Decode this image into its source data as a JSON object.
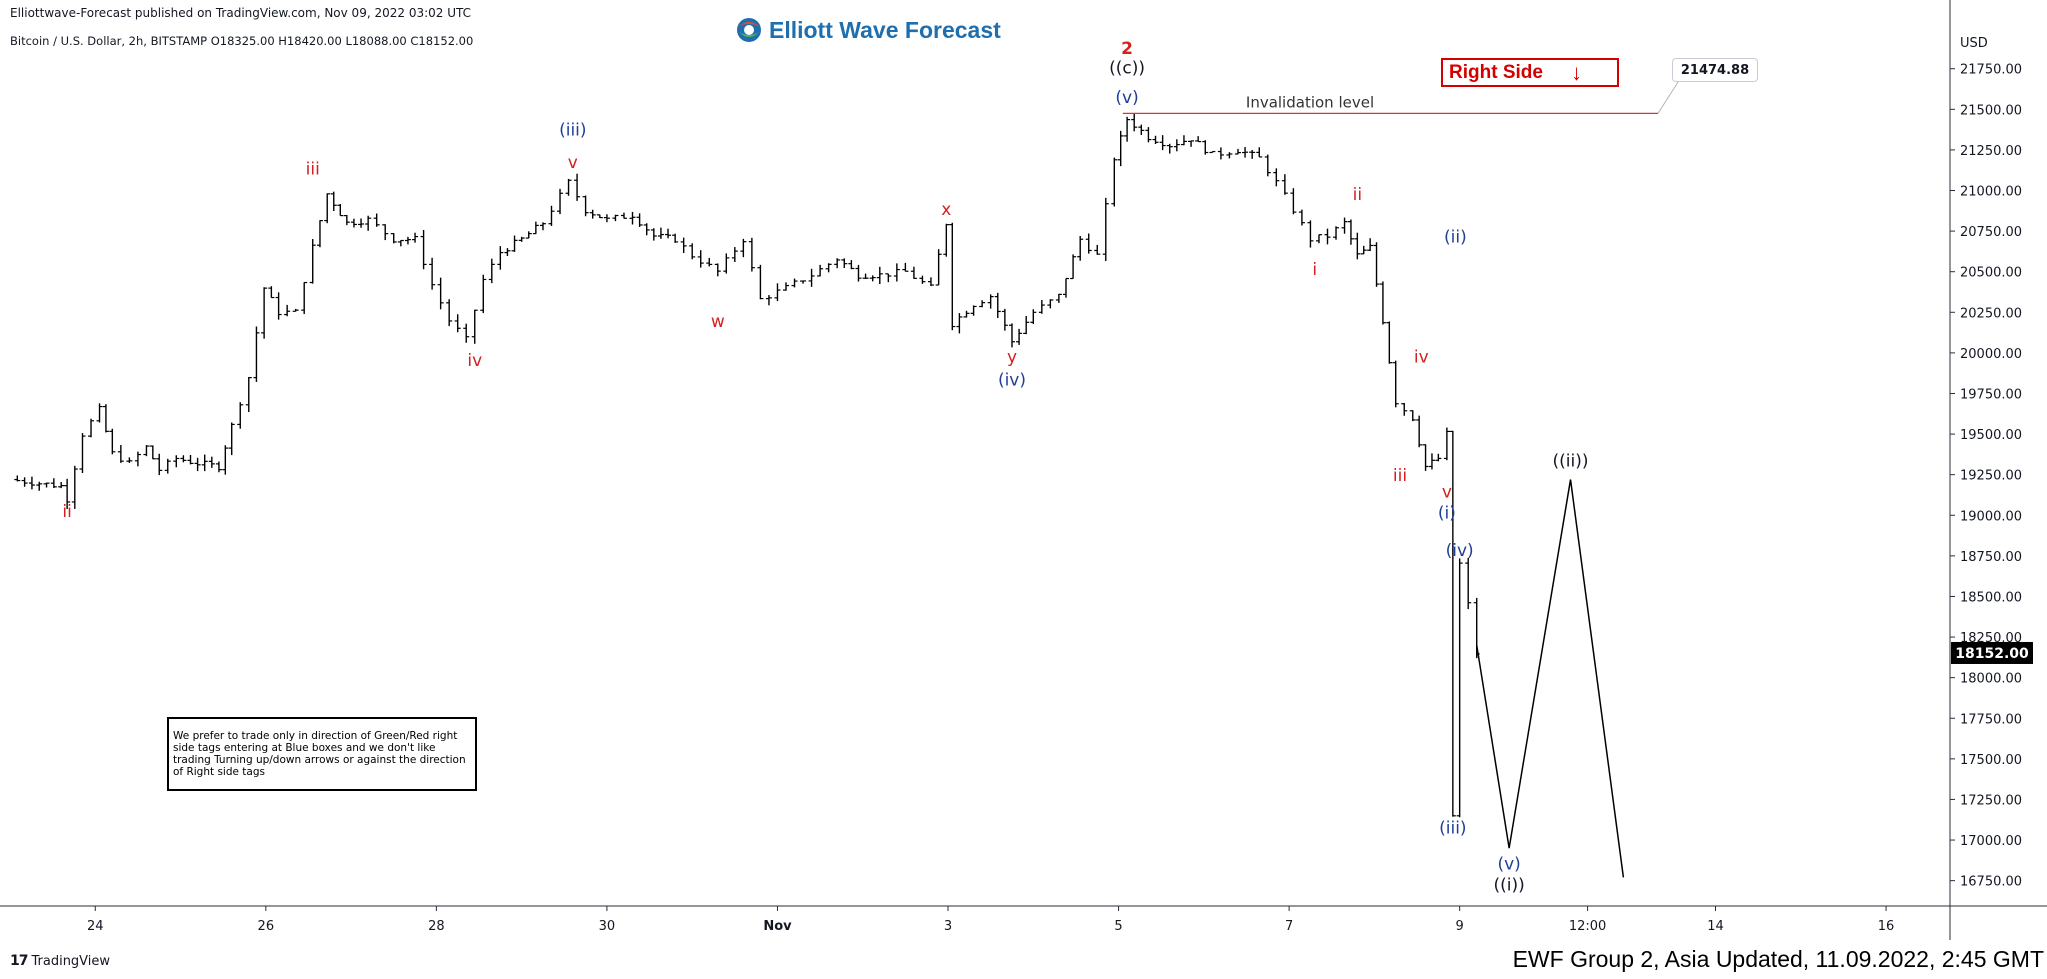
{
  "header": {
    "publisher": "Elliottwave-Forecast published on TradingView.com, Nov 09, 2022 03:02 UTC",
    "symbol_line": "Bitcoin / U.S. Dollar, 2h, BITSTAMP  O18325.00  H18420.00  L18088.00  C18152.00"
  },
  "brand": {
    "name": "Elliott Wave Forecast",
    "logo_icon": "ewf-globe-logo"
  },
  "right_side_tag": {
    "label": "Right Side",
    "arrow": "↓",
    "color": "#d40000"
  },
  "invalidation": {
    "label": "Invalidation level",
    "price_label": "21474.88",
    "price": 21474.88
  },
  "note": "We prefer to trade only in direction of Green/Red right side tags entering at Blue boxes and we don't like trading Turning up/down arrows or against the direction of Right side tags",
  "footer": {
    "tv_logo": "TradingView",
    "tv_mark": "17",
    "update": "EWF Group 2, Asia Updated, 11.09.2022, 2:45 GMT"
  },
  "chart_data": {
    "type": "line",
    "ylim": [
      16600,
      22050
    ],
    "y_axis_unit": "USD",
    "y_ticks": [
      "21750.00",
      "21500.00",
      "21250.00",
      "21000.00",
      "20750.00",
      "20500.00",
      "20250.00",
      "20000.00",
      "19750.00",
      "19500.00",
      "19250.00",
      "19000.00",
      "18750.00",
      "18500.00",
      "18250.00",
      "18000.00",
      "17750.00",
      "17500.00",
      "17250.00",
      "17000.00",
      "16750.00"
    ],
    "y_tick_values": [
      21750,
      21500,
      21250,
      21000,
      20750,
      20500,
      20250,
      20000,
      19750,
      19500,
      19250,
      19000,
      18750,
      18500,
      18250,
      18000,
      17750,
      17500,
      17250,
      17000,
      16750
    ],
    "x_ticks": [
      {
        "label": "24",
        "t": 1.0
      },
      {
        "label": "26",
        "t": 3.0
      },
      {
        "label": "28",
        "t": 5.0
      },
      {
        "label": "30",
        "t": 7.0
      },
      {
        "label": "Nov",
        "t": 9.0
      },
      {
        "label": "3",
        "t": 11.0
      },
      {
        "label": "5",
        "t": 13.0
      },
      {
        "label": "7",
        "t": 15.0
      },
      {
        "label": "9",
        "t": 17.0
      },
      {
        "label": "12:00",
        "t": 18.5
      },
      {
        "label": "14",
        "t": 20.0
      },
      {
        "label": "16",
        "t": 22.0
      }
    ],
    "current_price": {
      "label": "18152.00",
      "value": 18152
    },
    "price_path": [
      {
        "t": 0.0,
        "p": 19220
      },
      {
        "t": 0.6,
        "p": 19180
      },
      {
        "t": 0.67,
        "p": 19100
      },
      {
        "t": 0.85,
        "p": 19500
      },
      {
        "t": 1.05,
        "p": 19650
      },
      {
        "t": 1.2,
        "p": 19380
      },
      {
        "t": 1.4,
        "p": 19320
      },
      {
        "t": 1.6,
        "p": 19420
      },
      {
        "t": 1.75,
        "p": 19280
      },
      {
        "t": 1.95,
        "p": 19350
      },
      {
        "t": 2.2,
        "p": 19320
      },
      {
        "t": 2.45,
        "p": 19300
      },
      {
        "t": 2.6,
        "p": 19550
      },
      {
        "t": 2.8,
        "p": 19850
      },
      {
        "t": 2.98,
        "p": 20400
      },
      {
        "t": 3.15,
        "p": 20250
      },
      {
        "t": 3.35,
        "p": 20250
      },
      {
        "t": 3.55,
        "p": 20650
      },
      {
        "t": 3.72,
        "p": 20980
      },
      {
        "t": 3.95,
        "p": 20800
      },
      {
        "t": 4.2,
        "p": 20820
      },
      {
        "t": 4.5,
        "p": 20700
      },
      {
        "t": 4.75,
        "p": 20700
      },
      {
        "t": 4.95,
        "p": 20420
      },
      {
        "t": 5.15,
        "p": 20200
      },
      {
        "t": 5.35,
        "p": 20080
      },
      {
        "t": 5.55,
        "p": 20450
      },
      {
        "t": 5.75,
        "p": 20620
      },
      {
        "t": 6.0,
        "p": 20700
      },
      {
        "t": 6.25,
        "p": 20800
      },
      {
        "t": 6.55,
        "p": 21050
      },
      {
        "t": 6.75,
        "p": 20880
      },
      {
        "t": 7.0,
        "p": 20820
      },
      {
        "t": 7.3,
        "p": 20850
      },
      {
        "t": 7.55,
        "p": 20720
      },
      {
        "t": 7.8,
        "p": 20700
      },
      {
        "t": 8.0,
        "p": 20600
      },
      {
        "t": 8.3,
        "p": 20500
      },
      {
        "t": 8.6,
        "p": 20700
      },
      {
        "t": 8.8,
        "p": 20330
      },
      {
        "t": 9.1,
        "p": 20400
      },
      {
        "t": 9.4,
        "p": 20480
      },
      {
        "t": 9.7,
        "p": 20580
      },
      {
        "t": 9.95,
        "p": 20480
      },
      {
        "t": 10.2,
        "p": 20480
      },
      {
        "t": 10.5,
        "p": 20500
      },
      {
        "t": 10.8,
        "p": 20400
      },
      {
        "t": 10.98,
        "p": 20800
      },
      {
        "t": 11.05,
        "p": 20180
      },
      {
        "t": 11.3,
        "p": 20300
      },
      {
        "t": 11.5,
        "p": 20350
      },
      {
        "t": 11.75,
        "p": 20070
      },
      {
        "t": 12.0,
        "p": 20250
      },
      {
        "t": 12.3,
        "p": 20350
      },
      {
        "t": 12.55,
        "p": 20700
      },
      {
        "t": 12.75,
        "p": 20600
      },
      {
        "t": 12.95,
        "p": 21200
      },
      {
        "t": 13.1,
        "p": 21440
      },
      {
        "t": 13.35,
        "p": 21330
      },
      {
        "t": 13.6,
        "p": 21280
      },
      {
        "t": 13.85,
        "p": 21320
      },
      {
        "t": 14.1,
        "p": 21220
      },
      {
        "t": 14.4,
        "p": 21250
      },
      {
        "t": 14.65,
        "p": 21200
      },
      {
        "t": 14.85,
        "p": 21050
      },
      {
        "t": 15.05,
        "p": 20880
      },
      {
        "t": 15.25,
        "p": 20700
      },
      {
        "t": 15.45,
        "p": 20720
      },
      {
        "t": 15.65,
        "p": 20800
      },
      {
        "t": 15.8,
        "p": 20600
      },
      {
        "t": 15.95,
        "p": 20650
      },
      {
        "t": 16.1,
        "p": 20200
      },
      {
        "t": 16.25,
        "p": 19700
      },
      {
        "t": 16.45,
        "p": 19600
      },
      {
        "t": 16.6,
        "p": 19300
      },
      {
        "t": 16.75,
        "p": 19350
      },
      {
        "t": 16.85,
        "p": 19500
      },
      {
        "t": 16.92,
        "p": 17150
      },
      {
        "t": 17.0,
        "p": 18700
      },
      {
        "t": 17.1,
        "p": 18450
      },
      {
        "t": 17.2,
        "p": 18152
      }
    ],
    "projection": [
      {
        "t": 17.2,
        "p": 18200
      },
      {
        "t": 17.58,
        "p": 16950
      },
      {
        "t": 18.3,
        "p": 19220
      },
      {
        "t": 18.92,
        "p": 16770
      }
    ],
    "wave_labels": [
      {
        "text": "ii",
        "t": 0.67,
        "p": 18990,
        "color": "#d42020"
      },
      {
        "text": "iii",
        "t": 3.55,
        "p": 21100,
        "color": "#d42020"
      },
      {
        "text": "iv",
        "t": 5.45,
        "p": 19920,
        "color": "#d42020"
      },
      {
        "text": "(iii)",
        "t": 6.6,
        "p": 21340,
        "color": "#1f3f99"
      },
      {
        "text": "v",
        "t": 6.6,
        "p": 21140,
        "color": "#d42020"
      },
      {
        "text": "w",
        "t": 8.3,
        "p": 20160,
        "color": "#d42020"
      },
      {
        "text": "x",
        "t": 10.98,
        "p": 20850,
        "color": "#d42020"
      },
      {
        "text": "y",
        "t": 11.75,
        "p": 19940,
        "color": "#d42020"
      },
      {
        "text": "(iv)",
        "t": 11.75,
        "p": 19800,
        "color": "#1f3f99"
      },
      {
        "text": "2",
        "t": 13.1,
        "p": 21840,
        "color": "#d42020"
      },
      {
        "text": "((c))",
        "t": 13.1,
        "p": 21720,
        "color": "#131722"
      },
      {
        "text": "(v)",
        "t": 13.1,
        "p": 21540,
        "color": "#1f3f99"
      },
      {
        "text": "i",
        "t": 15.3,
        "p": 20480,
        "color": "#d42020"
      },
      {
        "text": "ii",
        "t": 15.8,
        "p": 20940,
        "color": "#d42020"
      },
      {
        "text": "(ii)",
        "t": 16.95,
        "p": 20680,
        "color": "#1f3f99"
      },
      {
        "text": "iv",
        "t": 16.55,
        "p": 19940,
        "color": "#d42020"
      },
      {
        "text": "iii",
        "t": 16.3,
        "p": 19210,
        "color": "#d42020"
      },
      {
        "text": "v",
        "t": 16.85,
        "p": 19110,
        "color": "#d42020"
      },
      {
        "text": "(i)",
        "t": 16.85,
        "p": 18980,
        "color": "#1f3f99"
      },
      {
        "text": "(iv)",
        "t": 17.0,
        "p": 18750,
        "color": "#1f3f99"
      },
      {
        "text": "(iii)",
        "t": 16.92,
        "p": 17040,
        "color": "#1f3f99"
      },
      {
        "text": "(v)",
        "t": 17.58,
        "p": 16820,
        "color": "#1f3f99"
      },
      {
        "text": "((i))",
        "t": 17.58,
        "p": 16690,
        "color": "#131722"
      },
      {
        "text": "((ii))",
        "t": 18.3,
        "p": 19300,
        "color": "#131722"
      }
    ]
  }
}
